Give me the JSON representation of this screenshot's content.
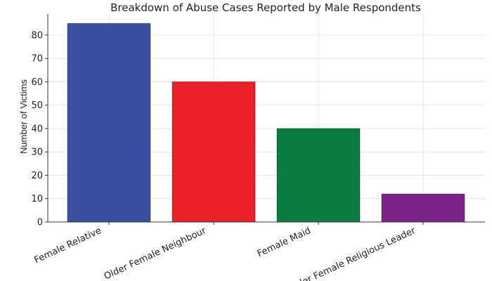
{
  "chart_data": {
    "type": "bar",
    "title": "Breakdown of Abuse Cases Reported by Male Respondents",
    "xlabel": "",
    "ylabel": "Number of Victims",
    "categories": [
      "Female Relative",
      "Older Female Neighbour",
      "Female Maid",
      "Older Female Religious Leader"
    ],
    "values": [
      85,
      60,
      40,
      12
    ],
    "colors": [
      "#3a4fa0",
      "#ea1f27",
      "#0b7c40",
      "#7c2286"
    ],
    "ylim": [
      0,
      89
    ],
    "yticks": [
      0,
      10,
      20,
      30,
      40,
      50,
      60,
      70,
      80
    ],
    "grid": true
  }
}
